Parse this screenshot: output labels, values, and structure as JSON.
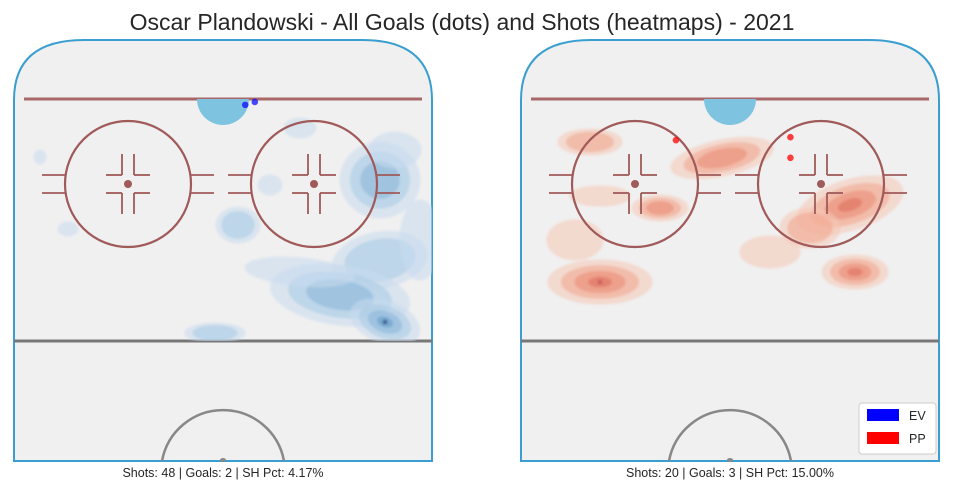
{
  "title": "Oscar Plandowski - All Goals (dots) and Shots (heatmaps) - 2021",
  "legend": {
    "placement": "bottom-right",
    "items": [
      {
        "label": "EV",
        "color": "#0000ff"
      },
      {
        "label": "PP",
        "color": "#ff0000"
      }
    ]
  },
  "colors": {
    "rink_fill": "#f0f0f0",
    "boards": "#3a9fd0",
    "goal_line": "#a86868",
    "faceoff": "#a05a5a",
    "crease": "#7ec4e0",
    "blue_line": "#777777",
    "center_circle": "#888888"
  },
  "chart_data": [
    {
      "type": "heatmap",
      "panel": "EV",
      "caption": "Shots: 48 | Goals: 2 | SH Pct: 4.17%",
      "shots": 48,
      "goals": 2,
      "sh_pct": 4.17,
      "heat_color": "blue",
      "goal_points": [
        {
          "x": 87,
          "y": -7
        },
        {
          "x": 88,
          "y": -10
        }
      ]
    },
    {
      "type": "heatmap",
      "panel": "PP",
      "caption": "Shots: 20 | Goals: 3 | SH Pct: 15.00%",
      "shots": 20,
      "goals": 3,
      "sh_pct": 15.0,
      "heat_color": "red",
      "goal_points": [
        {
          "x": 75,
          "y": 17
        },
        {
          "x": 76,
          "y": -19
        },
        {
          "x": 69,
          "y": -19
        }
      ]
    }
  ]
}
